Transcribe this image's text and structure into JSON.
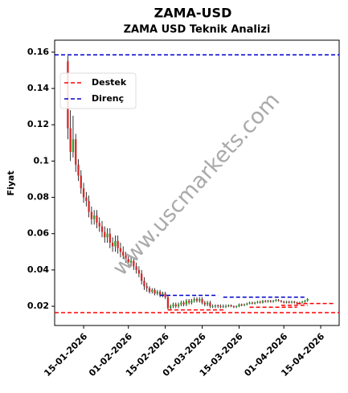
{
  "chart_data": {
    "type": "candlestick",
    "title": "ZAMA-USD",
    "subtitle": "ZAMA USD Teknik Analizi",
    "y_label": "Fiyat",
    "watermark": "www.uscmarkets.com",
    "x": [
      "2026-01-09",
      "2026-01-10",
      "2026-01-11",
      "2026-01-12",
      "2026-01-13",
      "2026-01-14",
      "2026-01-15",
      "2026-01-16",
      "2026-01-17",
      "2026-01-18",
      "2026-01-19",
      "2026-01-20",
      "2026-01-21",
      "2026-01-22",
      "2026-01-23",
      "2026-01-24",
      "2026-01-25",
      "2026-01-26",
      "2026-01-27",
      "2026-01-28",
      "2026-01-29",
      "2026-01-30",
      "2026-01-31",
      "2026-02-01",
      "2026-02-02",
      "2026-02-03",
      "2026-02-04",
      "2026-02-05",
      "2026-02-06",
      "2026-02-07",
      "2026-02-08",
      "2026-02-09",
      "2026-02-10",
      "2026-02-11",
      "2026-02-12",
      "2026-02-13",
      "2026-02-14",
      "2026-02-15",
      "2026-02-16",
      "2026-02-17",
      "2026-02-18",
      "2026-02-19",
      "2026-02-20",
      "2026-02-21",
      "2026-02-22",
      "2026-02-23",
      "2026-02-24",
      "2026-02-25",
      "2026-02-26",
      "2026-02-27",
      "2026-02-28",
      "2026-03-01",
      "2026-03-02",
      "2026-03-03",
      "2026-03-04",
      "2026-03-05",
      "2026-03-06",
      "2026-03-07",
      "2026-03-08",
      "2026-03-09",
      "2026-03-10",
      "2026-03-11",
      "2026-03-12",
      "2026-03-13",
      "2026-03-14",
      "2026-03-15",
      "2026-03-16",
      "2026-03-17",
      "2026-03-18",
      "2026-03-19",
      "2026-03-20",
      "2026-03-21",
      "2026-03-22",
      "2026-03-23",
      "2026-03-24",
      "2026-03-25",
      "2026-03-26",
      "2026-03-27",
      "2026-03-28",
      "2026-03-29",
      "2026-03-30",
      "2026-03-31",
      "2026-04-01",
      "2026-04-02",
      "2026-04-03",
      "2026-04-04",
      "2026-04-05",
      "2026-04-06",
      "2026-04-07",
      "2026-04-08",
      "2026-04-09",
      "2026-04-10"
    ],
    "open": [
      0.155,
      0.118,
      0.105,
      0.112,
      0.098,
      0.092,
      0.085,
      0.08,
      0.078,
      0.072,
      0.068,
      0.07,
      0.066,
      0.064,
      0.061,
      0.058,
      0.06,
      0.055,
      0.053,
      0.056,
      0.052,
      0.05,
      0.048,
      0.046,
      0.044,
      0.045,
      0.042,
      0.04,
      0.038,
      0.034,
      0.031,
      0.03,
      0.028,
      0.029,
      0.027,
      0.028,
      0.026,
      0.027,
      0.025,
      0.019,
      0.02,
      0.021,
      0.02,
      0.021,
      0.022,
      0.021,
      0.023,
      0.022,
      0.023,
      0.024,
      0.023,
      0.024,
      0.022,
      0.021,
      0.022,
      0.02,
      0.02,
      0.0205,
      0.02,
      0.0195,
      0.02,
      0.02,
      0.0205,
      0.02,
      0.0195,
      0.02,
      0.021,
      0.0205,
      0.021,
      0.0215,
      0.022,
      0.0215,
      0.022,
      0.0225,
      0.022,
      0.023,
      0.0225,
      0.023,
      0.0225,
      0.023,
      0.0235,
      0.023,
      0.0225,
      0.022,
      0.0225,
      0.022,
      0.0225,
      0.022,
      0.0215,
      0.022,
      0.0225,
      0.023
    ],
    "high": [
      0.158,
      0.128,
      0.125,
      0.115,
      0.101,
      0.095,
      0.088,
      0.083,
      0.081,
      0.075,
      0.073,
      0.073,
      0.069,
      0.067,
      0.064,
      0.063,
      0.063,
      0.058,
      0.059,
      0.059,
      0.055,
      0.053,
      0.05,
      0.048,
      0.047,
      0.047,
      0.044,
      0.042,
      0.04,
      0.036,
      0.033,
      0.031,
      0.03,
      0.03,
      0.029,
      0.029,
      0.028,
      0.028,
      0.026,
      0.021,
      0.022,
      0.022,
      0.022,
      0.023,
      0.023,
      0.024,
      0.024,
      0.024,
      0.025,
      0.025,
      0.025,
      0.025,
      0.023,
      0.023,
      0.023,
      0.021,
      0.021,
      0.021,
      0.021,
      0.021,
      0.021,
      0.021,
      0.021,
      0.0205,
      0.0205,
      0.0215,
      0.0215,
      0.0215,
      0.022,
      0.0225,
      0.0225,
      0.0225,
      0.023,
      0.023,
      0.0235,
      0.0235,
      0.0235,
      0.0235,
      0.0235,
      0.024,
      0.024,
      0.0235,
      0.023,
      0.023,
      0.023,
      0.023,
      0.023,
      0.0225,
      0.0225,
      0.023,
      0.0235,
      0.0245
    ],
    "low": [
      0.112,
      0.1,
      0.102,
      0.094,
      0.089,
      0.082,
      0.077,
      0.075,
      0.069,
      0.065,
      0.065,
      0.063,
      0.061,
      0.058,
      0.055,
      0.055,
      0.052,
      0.05,
      0.05,
      0.049,
      0.047,
      0.046,
      0.044,
      0.042,
      0.042,
      0.04,
      0.038,
      0.036,
      0.032,
      0.029,
      0.028,
      0.027,
      0.027,
      0.026,
      0.026,
      0.025,
      0.025,
      0.024,
      0.018,
      0.018,
      0.019,
      0.019,
      0.019,
      0.02,
      0.02,
      0.02,
      0.021,
      0.021,
      0.022,
      0.022,
      0.022,
      0.021,
      0.02,
      0.02,
      0.019,
      0.019,
      0.019,
      0.019,
      0.019,
      0.019,
      0.019,
      0.0195,
      0.0195,
      0.019,
      0.019,
      0.0195,
      0.02,
      0.02,
      0.0205,
      0.021,
      0.021,
      0.021,
      0.0215,
      0.0215,
      0.0215,
      0.022,
      0.022,
      0.022,
      0.022,
      0.0225,
      0.0225,
      0.022,
      0.0215,
      0.0215,
      0.0215,
      0.0215,
      0.0215,
      0.021,
      0.021,
      0.0215,
      0.022,
      0.0225
    ],
    "close": [
      0.118,
      0.105,
      0.112,
      0.098,
      0.092,
      0.085,
      0.08,
      0.078,
      0.072,
      0.068,
      0.07,
      0.066,
      0.064,
      0.061,
      0.058,
      0.06,
      0.055,
      0.053,
      0.056,
      0.052,
      0.05,
      0.048,
      0.046,
      0.044,
      0.045,
      0.042,
      0.04,
      0.038,
      0.034,
      0.031,
      0.03,
      0.028,
      0.029,
      0.027,
      0.028,
      0.026,
      0.027,
      0.025,
      0.019,
      0.02,
      0.021,
      0.02,
      0.021,
      0.022,
      0.021,
      0.023,
      0.022,
      0.023,
      0.024,
      0.023,
      0.024,
      0.022,
      0.021,
      0.022,
      0.02,
      0.02,
      0.0205,
      0.02,
      0.0195,
      0.02,
      0.02,
      0.0205,
      0.02,
      0.0195,
      0.02,
      0.021,
      0.0205,
      0.021,
      0.0215,
      0.022,
      0.0215,
      0.022,
      0.0225,
      0.022,
      0.023,
      0.0225,
      0.023,
      0.0225,
      0.023,
      0.0235,
      0.023,
      0.0225,
      0.022,
      0.0225,
      0.022,
      0.0225,
      0.022,
      0.0215,
      0.022,
      0.0225,
      0.023,
      0.024
    ],
    "up_color": "#2ca02c",
    "down_color": "#d62728",
    "xlim": [
      "2026-01-04",
      "2026-04-22"
    ],
    "xticks": [
      {
        "value": "2026-01-15",
        "label": "15-01-2026"
      },
      {
        "value": "2026-02-01",
        "label": "01-02-2026"
      },
      {
        "value": "2026-02-15",
        "label": "15-02-2026"
      },
      {
        "value": "2026-03-01",
        "label": "01-03-2026"
      },
      {
        "value": "2026-03-15",
        "label": "15-03-2026"
      },
      {
        "value": "2026-04-01",
        "label": "01-04-2026"
      },
      {
        "value": "2026-04-15",
        "label": "15-04-2026"
      }
    ],
    "ylim": [
      0.0094,
      0.1666
    ],
    "yticks": [
      0.02,
      0.04,
      0.06,
      0.08,
      0.1,
      0.12,
      0.14,
      0.16
    ],
    "legend": [
      {
        "name": "Destek",
        "color": "#ff0000"
      },
      {
        "name": "Direnç",
        "color": "#0000cc"
      }
    ],
    "levels": [
      {
        "kind": 0,
        "value": 0.0165
      },
      {
        "kind": 0,
        "value": 0.018,
        "start": "2026-02-16",
        "end": "2026-03-10"
      },
      {
        "kind": 0,
        "value": 0.0195,
        "start": "2026-03-19",
        "end": "2026-04-06"
      },
      {
        "kind": 0,
        "value": 0.0205,
        "start": "2026-03-31",
        "end": "2026-04-10"
      },
      {
        "kind": 0,
        "value": 0.0215,
        "start": "2026-04-06",
        "end": "2026-04-20"
      },
      {
        "kind": 1,
        "value": 0.1585
      },
      {
        "kind": 1,
        "value": 0.026,
        "start": "2026-02-13",
        "end": "2026-03-07"
      },
      {
        "kind": 1,
        "value": 0.025,
        "start": "2026-03-09",
        "end": "2026-04-09"
      }
    ]
  }
}
